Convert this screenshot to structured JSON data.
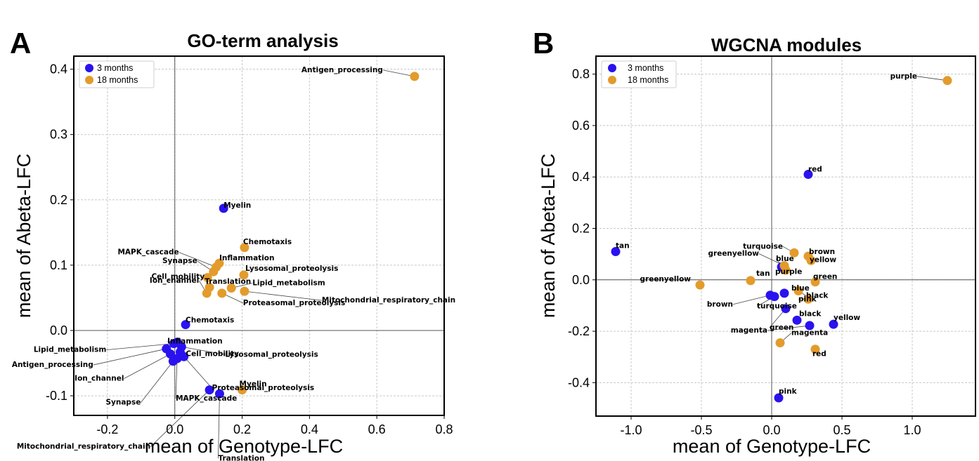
{
  "colors": {
    "m3": "#2a12f0",
    "m18": "#e39b2b"
  },
  "legend": {
    "m3": "3 months",
    "m18": "18 months"
  },
  "chart_data": [
    {
      "type": "scatter",
      "letter": "A",
      "title": "GO-term analysis",
      "xlabel": "mean of Genotype-LFC",
      "ylabel": "mean of Abeta-LFC",
      "xlim": [
        -0.3,
        0.8
      ],
      "ylim": [
        -0.13,
        0.42
      ],
      "xticks": [
        -0.2,
        0.0,
        0.2,
        0.4,
        0.6,
        0.8
      ],
      "xtick_labels": [
        "-0.2",
        "0.0",
        "0.2",
        "0.4",
        "0.6",
        "0.8"
      ],
      "yticks": [
        -0.1,
        0.0,
        0.1,
        0.2,
        0.3,
        0.4
      ],
      "ytick_labels": [
        "-0.1",
        "0.0",
        "0.1",
        "0.2",
        "0.3",
        "0.4"
      ],
      "grid": true,
      "legend_position": "top-left",
      "series": [
        {
          "name": "3 months",
          "points": [
            {
              "label": "Myelin",
              "x": 0.145,
              "y": 0.187
            },
            {
              "label": "Chemotaxis",
              "x": 0.032,
              "y": 0.009
            },
            {
              "label": "Inflammation",
              "x": 0.007,
              "y": -0.018
            },
            {
              "label": "Lipid_metabolism",
              "x": -0.003,
              "y": -0.02
            },
            {
              "label": "Lysosomal_proteolysis",
              "x": 0.02,
              "y": -0.025
            },
            {
              "label": "Cell_mobility",
              "x": 0.016,
              "y": -0.033
            },
            {
              "label": "Antigen_processing",
              "x": -0.025,
              "y": -0.028
            },
            {
              "label": "Ion_channel",
              "x": -0.013,
              "y": -0.036
            },
            {
              "label": "Proteasomal_proteolysis",
              "x": 0.027,
              "y": -0.04
            },
            {
              "label": "MAPK_cascade",
              "x": 0.007,
              "y": -0.043
            },
            {
              "label": "Synapse",
              "x": -0.005,
              "y": -0.047
            },
            {
              "label": "Mitochondrial_respiratory_chain",
              "x": 0.103,
              "y": -0.091
            },
            {
              "label": "Translation",
              "x": 0.133,
              "y": -0.097
            }
          ]
        },
        {
          "name": "18 months",
          "points": [
            {
              "label": "Antigen_processing",
              "x": 0.712,
              "y": 0.389
            },
            {
              "label": "Chemotaxis",
              "x": 0.207,
              "y": 0.127
            },
            {
              "label": "Inflammation",
              "x": 0.132,
              "y": 0.103
            },
            {
              "label": "MAPK_cascade",
              "x": 0.123,
              "y": 0.097
            },
            {
              "label": "Synapse",
              "x": 0.115,
              "y": 0.09
            },
            {
              "label": "Lysosomal_proteolysis",
              "x": 0.205,
              "y": 0.085
            },
            {
              "label": "Translation",
              "x": 0.097,
              "y": 0.081
            },
            {
              "label": "Lipid_metabolism",
              "x": 0.168,
              "y": 0.065
            },
            {
              "label": "Cell_mobility",
              "x": 0.103,
              "y": 0.066
            },
            {
              "label": "Mitochondrial_respiratory_chain",
              "x": 0.207,
              "y": 0.06
            },
            {
              "label": "Ion_channel",
              "x": 0.095,
              "y": 0.057
            },
            {
              "label": "Proteasomal_proteolysis",
              "x": 0.14,
              "y": 0.057
            },
            {
              "label": "Myelin",
              "x": 0.2,
              "y": -0.091
            }
          ]
        }
      ]
    },
    {
      "type": "scatter",
      "letter": "B",
      "title": "WGCNA modules",
      "xlabel": "mean of Genotype-LFC",
      "ylabel": "mean of Abeta-LFC",
      "xlim": [
        -1.25,
        1.45
      ],
      "ylim": [
        -0.53,
        0.87
      ],
      "xticks": [
        -1.0,
        -0.5,
        0.0,
        0.5,
        1.0
      ],
      "xtick_labels": [
        "-1.0",
        "-0.5",
        "0.0",
        "0.5",
        "1.0"
      ],
      "yticks": [
        -0.4,
        -0.2,
        0.0,
        0.2,
        0.4,
        0.6,
        0.8
      ],
      "ytick_labels": [
        "-0.4",
        "-0.2",
        "0.0",
        "0.2",
        "0.4",
        "0.6",
        "0.8"
      ],
      "grid": true,
      "legend_position": "top-left",
      "series": [
        {
          "name": "3 months",
          "points": [
            {
              "label": "red",
              "x": 0.26,
              "y": 0.41
            },
            {
              "label": "tan",
              "x": -1.11,
              "y": 0.11
            },
            {
              "label": "purple",
              "x": 0.07,
              "y": 0.05
            },
            {
              "label": "blue",
              "x": 0.09,
              "y": -0.052
            },
            {
              "label": "brown",
              "x": -0.01,
              "y": -0.06
            },
            {
              "label": "turquoise",
              "x": 0.02,
              "y": -0.065
            },
            {
              "label": "green",
              "x": 0.1,
              "y": -0.112
            },
            {
              "label": "black",
              "x": 0.18,
              "y": -0.157
            },
            {
              "label": "magenta",
              "x": 0.27,
              "y": -0.178
            },
            {
              "label": "yellow",
              "x": 0.44,
              "y": -0.173
            },
            {
              "label": "pink",
              "x": 0.05,
              "y": -0.459
            }
          ]
        },
        {
          "name": "18 months",
          "points": [
            {
              "label": "purple",
              "x": 1.25,
              "y": 0.775
            },
            {
              "label": "turquoise",
              "x": 0.16,
              "y": 0.105
            },
            {
              "label": "brown",
              "x": 0.26,
              "y": 0.092
            },
            {
              "label": "yellow",
              "x": 0.28,
              "y": 0.075
            },
            {
              "label": "greenyellow",
              "x": 0.09,
              "y": 0.055
            },
            {
              "label": "blue",
              "x": 0.1,
              "y": 0.038
            },
            {
              "label": "tan",
              "x": -0.15,
              "y": -0.003
            },
            {
              "label": "green",
              "x": 0.31,
              "y": -0.008
            },
            {
              "label": "greenyellow",
              "x": -0.51,
              "y": -0.02
            },
            {
              "label": "black",
              "x": 0.19,
              "y": -0.043
            },
            {
              "label": "pink",
              "x": 0.26,
              "y": -0.075
            },
            {
              "label": "magenta",
              "x": 0.06,
              "y": -0.245
            },
            {
              "label": "red",
              "x": 0.31,
              "y": -0.27
            }
          ]
        }
      ]
    }
  ]
}
